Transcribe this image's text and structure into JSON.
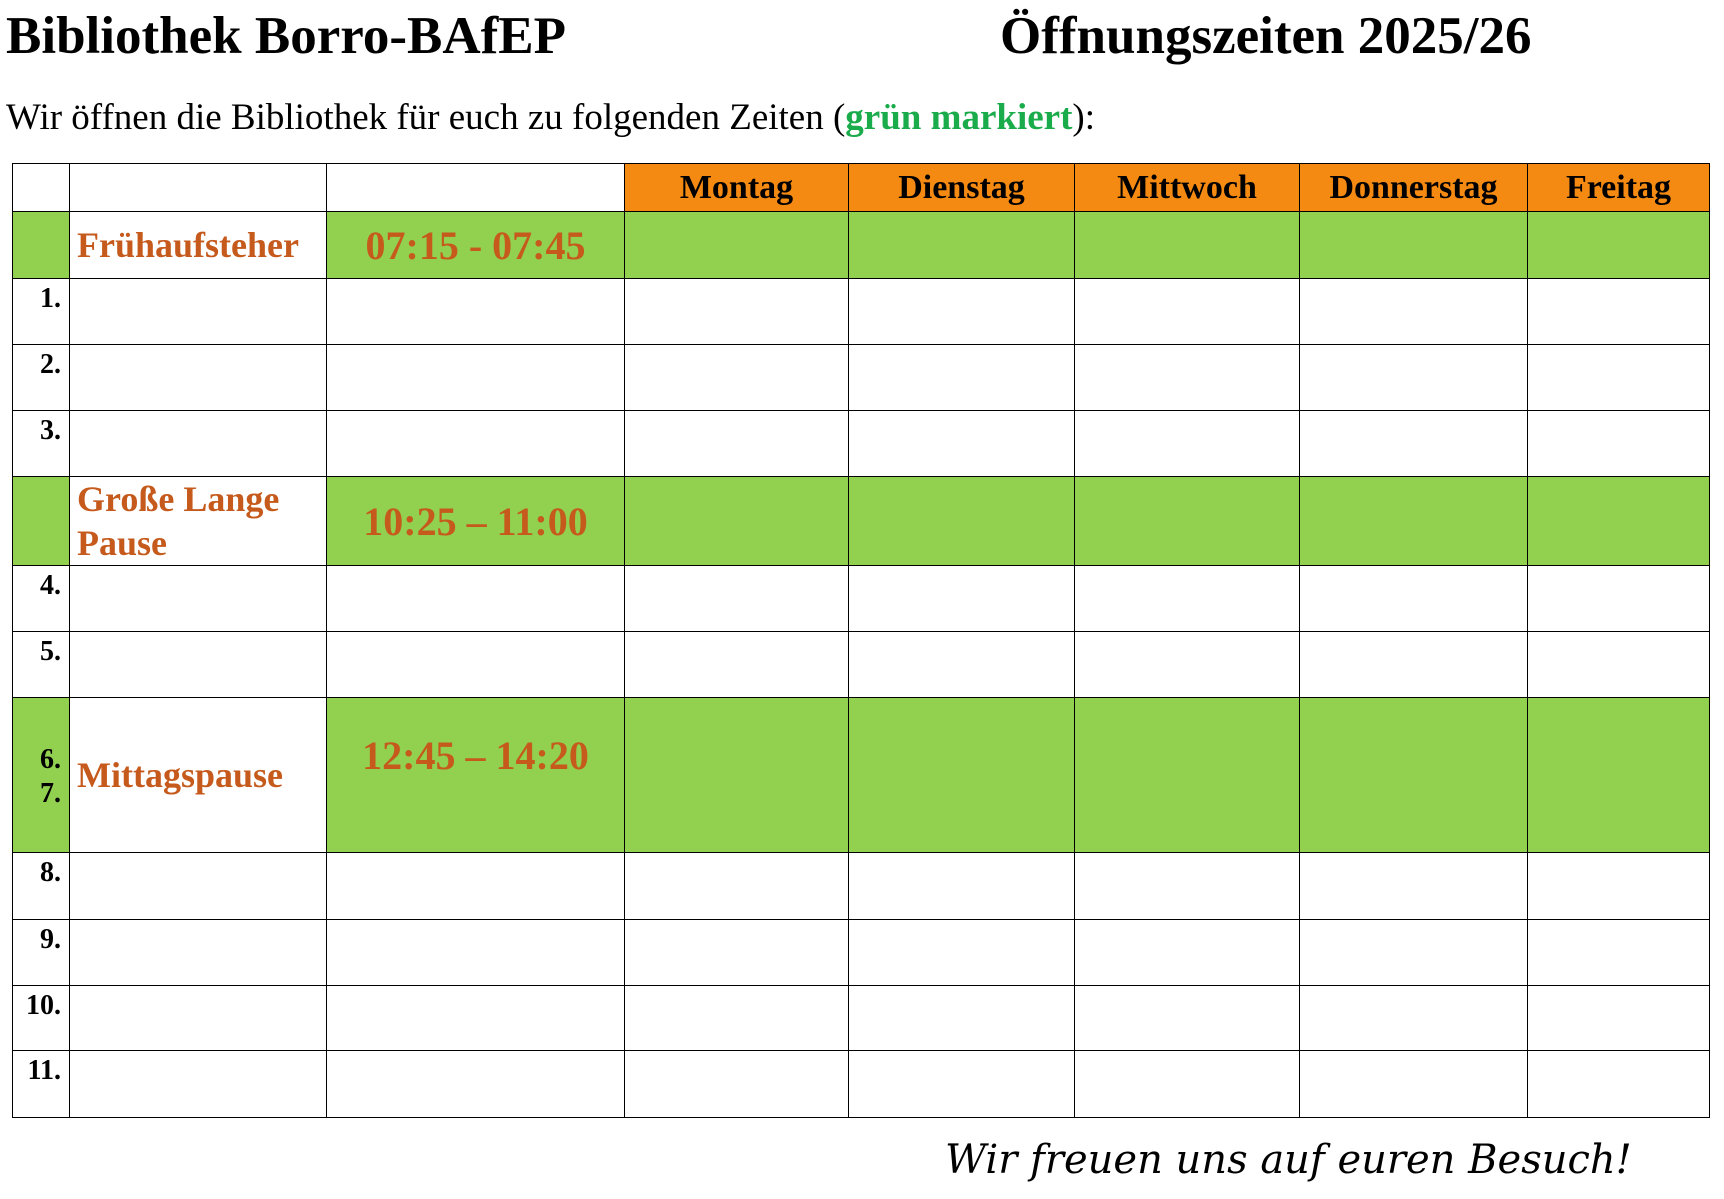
{
  "header": {
    "title": "Bibliothek Borro-BAfEP",
    "subtitle_right": "Öffnungszeiten 2025/26"
  },
  "intro": {
    "before": "Wir öffnen die Bibliothek für euch zu folgenden Zeiten (",
    "highlight": "grün markiert",
    "after": "):"
  },
  "colors": {
    "header": "#f58a12",
    "open": "#92d050",
    "label": "#c55a1c",
    "highlight": "#1aab4b"
  },
  "days": [
    "Montag",
    "Dienstag",
    "Mittwoch",
    "Donnerstag",
    "Freitag"
  ],
  "rows": [
    {
      "num": "",
      "label": "Frühaufsteher",
      "time": "07:15 - 07:45",
      "open": true
    },
    {
      "num": "1.",
      "label": "",
      "time": "",
      "open": false
    },
    {
      "num": "2.",
      "label": "",
      "time": "",
      "open": false
    },
    {
      "num": "3.",
      "label": "",
      "time": "",
      "open": false
    },
    {
      "num": "",
      "label": "Große Lange Pause",
      "time": "10:25 – 11:00",
      "open": true
    },
    {
      "num": "4.",
      "label": "",
      "time": "",
      "open": false
    },
    {
      "num": "5.",
      "label": "",
      "time": "",
      "open": false
    },
    {
      "num": "6. 7.",
      "label": "Mittagspause",
      "time": "12:45 – 14:20",
      "open": true
    },
    {
      "num": "8.",
      "label": "",
      "time": "",
      "open": false
    },
    {
      "num": "9.",
      "label": "",
      "time": "",
      "open": false
    },
    {
      "num": "10.",
      "label": "",
      "time": "",
      "open": false
    },
    {
      "num": "11.",
      "label": "",
      "time": "",
      "open": false
    }
  ],
  "footer": "Wir freuen uns auf euren Besuch!"
}
